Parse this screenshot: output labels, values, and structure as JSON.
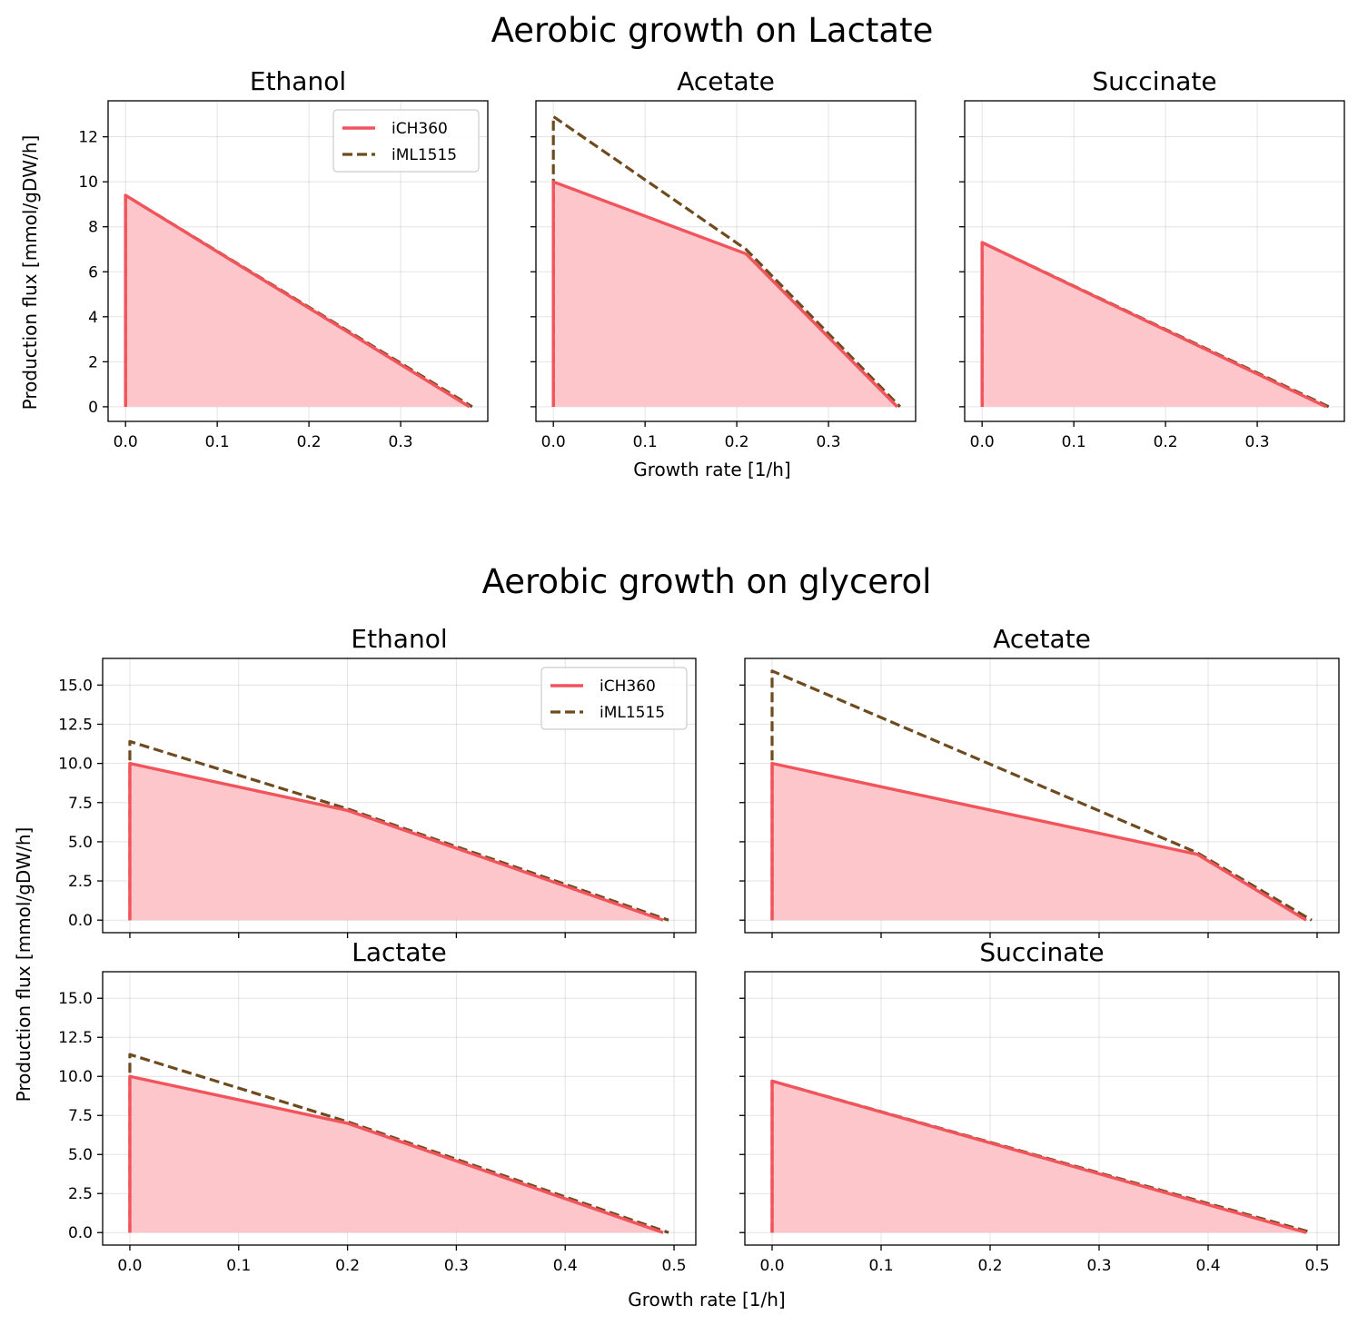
{
  "colors": {
    "ich360_line": "#f2545b",
    "ich360_fill": "#fdc6cb",
    "iml1515_line": "#6e4b1f"
  },
  "legend": {
    "labels": [
      "iCH360",
      "iML1515"
    ],
    "location": "upper right"
  },
  "sections": [
    {
      "suptitle": "Aerobic growth on Lactate",
      "xlabel": "Growth rate [1/h]",
      "ylabel": "Production flux [mmol/gDW/h]"
    },
    {
      "suptitle": "Aerobic growth on glycerol",
      "xlabel": "Growth rate [1/h]",
      "ylabel": "Production flux [mmol/gDW/h]"
    }
  ],
  "chart_data": [
    {
      "type": "area",
      "section": 0,
      "title": "Ethanol",
      "legend": true,
      "xlim": [
        -0.019,
        0.395
      ],
      "ylim": [
        -0.65,
        13.6
      ],
      "xticks": [
        0.0,
        0.1,
        0.2,
        0.3
      ],
      "xtick_labels": [
        "0.0",
        "0.1",
        "0.2",
        "0.3"
      ],
      "show_xtick_labels": true,
      "yticks": [
        0,
        2,
        4,
        6,
        8,
        10,
        12
      ],
      "ytick_labels": [
        "0",
        "2",
        "4",
        "6",
        "8",
        "10",
        "12"
      ],
      "show_ytick_labels": true,
      "series": [
        {
          "name": "iML1515",
          "style": "dashed",
          "x": [
            0,
            0,
            0.378
          ],
          "y": [
            0,
            9.4,
            0
          ]
        },
        {
          "name": "iCH360",
          "style": "solid-filled",
          "x": [
            0,
            0,
            0.375
          ],
          "y": [
            0,
            9.4,
            0
          ]
        }
      ]
    },
    {
      "type": "area",
      "section": 0,
      "title": "Acetate",
      "legend": false,
      "xlim": [
        -0.019,
        0.395
      ],
      "ylim": [
        -0.65,
        13.6
      ],
      "xticks": [
        0.0,
        0.1,
        0.2,
        0.3
      ],
      "xtick_labels": [
        "0.0",
        "0.1",
        "0.2",
        "0.3"
      ],
      "show_xtick_labels": true,
      "yticks": [
        0,
        2,
        4,
        6,
        8,
        10,
        12
      ],
      "ytick_labels": [
        "0",
        "2",
        "4",
        "6",
        "8",
        "10",
        "12"
      ],
      "show_ytick_labels": false,
      "series": [
        {
          "name": "iML1515",
          "style": "dashed",
          "x": [
            0,
            0,
            0.21,
            0.378
          ],
          "y": [
            0,
            12.9,
            7.0,
            0
          ]
        },
        {
          "name": "iCH360",
          "style": "solid-filled",
          "x": [
            0,
            0,
            0.21,
            0.375
          ],
          "y": [
            0,
            10.0,
            6.8,
            0
          ]
        }
      ]
    },
    {
      "type": "area",
      "section": 0,
      "title": "Succinate",
      "legend": false,
      "xlim": [
        -0.019,
        0.395
      ],
      "ylim": [
        -0.65,
        13.6
      ],
      "xticks": [
        0.0,
        0.1,
        0.2,
        0.3
      ],
      "xtick_labels": [
        "0.0",
        "0.1",
        "0.2",
        "0.3"
      ],
      "show_xtick_labels": true,
      "yticks": [
        0,
        2,
        4,
        6,
        8,
        10,
        12
      ],
      "ytick_labels": [
        "0",
        "2",
        "4",
        "6",
        "8",
        "10",
        "12"
      ],
      "show_ytick_labels": false,
      "series": [
        {
          "name": "iML1515",
          "style": "dashed",
          "x": [
            0,
            0,
            0.378
          ],
          "y": [
            0,
            7.3,
            0
          ]
        },
        {
          "name": "iCH360",
          "style": "solid-filled",
          "x": [
            0,
            0,
            0.375
          ],
          "y": [
            0,
            7.3,
            0
          ]
        }
      ]
    },
    {
      "type": "area",
      "section": 1,
      "title": "Ethanol",
      "legend": true,
      "xlim": [
        -0.025,
        0.52
      ],
      "ylim": [
        -0.8,
        16.7
      ],
      "xticks": [
        0.0,
        0.1,
        0.2,
        0.3,
        0.4,
        0.5
      ],
      "xtick_labels": [
        "0.0",
        "0.1",
        "0.2",
        "0.3",
        "0.4",
        "0.5"
      ],
      "show_xtick_labels": false,
      "yticks": [
        0.0,
        2.5,
        5.0,
        7.5,
        10.0,
        12.5,
        15.0
      ],
      "ytick_labels": [
        "0.0",
        "2.5",
        "5.0",
        "7.5",
        "10.0",
        "12.5",
        "15.0"
      ],
      "show_ytick_labels": true,
      "series": [
        {
          "name": "iML1515",
          "style": "dashed",
          "x": [
            0,
            0,
            0.2,
            0.495
          ],
          "y": [
            0,
            11.4,
            7.1,
            0
          ]
        },
        {
          "name": "iCH360",
          "style": "solid-filled",
          "x": [
            0,
            0,
            0.2,
            0.49
          ],
          "y": [
            0,
            10.0,
            7.0,
            0
          ]
        }
      ]
    },
    {
      "type": "area",
      "section": 1,
      "title": "Acetate",
      "legend": false,
      "xlim": [
        -0.025,
        0.52
      ],
      "ylim": [
        -0.8,
        16.7
      ],
      "xticks": [
        0.0,
        0.1,
        0.2,
        0.3,
        0.4,
        0.5
      ],
      "xtick_labels": [
        "0.0",
        "0.1",
        "0.2",
        "0.3",
        "0.4",
        "0.5"
      ],
      "show_xtick_labels": false,
      "yticks": [
        0.0,
        2.5,
        5.0,
        7.5,
        10.0,
        12.5,
        15.0
      ],
      "ytick_labels": [
        "0.0",
        "2.5",
        "5.0",
        "7.5",
        "10.0",
        "12.5",
        "15.0"
      ],
      "show_ytick_labels": false,
      "series": [
        {
          "name": "iML1515",
          "style": "dashed",
          "x": [
            0,
            0,
            0.39,
            0.495
          ],
          "y": [
            0,
            15.9,
            4.3,
            0
          ]
        },
        {
          "name": "iCH360",
          "style": "solid-filled",
          "x": [
            0,
            0,
            0.39,
            0.49
          ],
          "y": [
            0,
            10.0,
            4.2,
            0
          ]
        }
      ]
    },
    {
      "type": "area",
      "section": 1,
      "title": "Lactate",
      "legend": false,
      "xlim": [
        -0.025,
        0.52
      ],
      "ylim": [
        -0.8,
        16.7
      ],
      "xticks": [
        0.0,
        0.1,
        0.2,
        0.3,
        0.4,
        0.5
      ],
      "xtick_labels": [
        "0.0",
        "0.1",
        "0.2",
        "0.3",
        "0.4",
        "0.5"
      ],
      "show_xtick_labels": true,
      "yticks": [
        0.0,
        2.5,
        5.0,
        7.5,
        10.0,
        12.5,
        15.0
      ],
      "ytick_labels": [
        "0.0",
        "2.5",
        "5.0",
        "7.5",
        "10.0",
        "12.5",
        "15.0"
      ],
      "show_ytick_labels": true,
      "series": [
        {
          "name": "iML1515",
          "style": "dashed",
          "x": [
            0,
            0,
            0.2,
            0.495
          ],
          "y": [
            0,
            11.4,
            7.1,
            0
          ]
        },
        {
          "name": "iCH360",
          "style": "solid-filled",
          "x": [
            0,
            0,
            0.2,
            0.49
          ],
          "y": [
            0,
            10.0,
            7.0,
            0
          ]
        }
      ]
    },
    {
      "type": "area",
      "section": 1,
      "title": "Succinate",
      "legend": false,
      "xlim": [
        -0.025,
        0.52
      ],
      "ylim": [
        -0.8,
        16.7
      ],
      "xticks": [
        0.0,
        0.1,
        0.2,
        0.3,
        0.4,
        0.5
      ],
      "xtick_labels": [
        "0.0",
        "0.1",
        "0.2",
        "0.3",
        "0.4",
        "0.5"
      ],
      "show_xtick_labels": true,
      "yticks": [
        0.0,
        2.5,
        5.0,
        7.5,
        10.0,
        12.5,
        15.0
      ],
      "ytick_labels": [
        "0.0",
        "2.5",
        "5.0",
        "7.5",
        "10.0",
        "12.5",
        "15.0"
      ],
      "show_ytick_labels": false,
      "series": [
        {
          "name": "iML1515",
          "style": "dashed",
          "x": [
            0,
            0,
            0.495
          ],
          "y": [
            0,
            9.7,
            0
          ]
        },
        {
          "name": "iCH360",
          "style": "solid-filled",
          "x": [
            0,
            0,
            0.49
          ],
          "y": [
            0,
            9.7,
            0
          ]
        }
      ]
    }
  ]
}
